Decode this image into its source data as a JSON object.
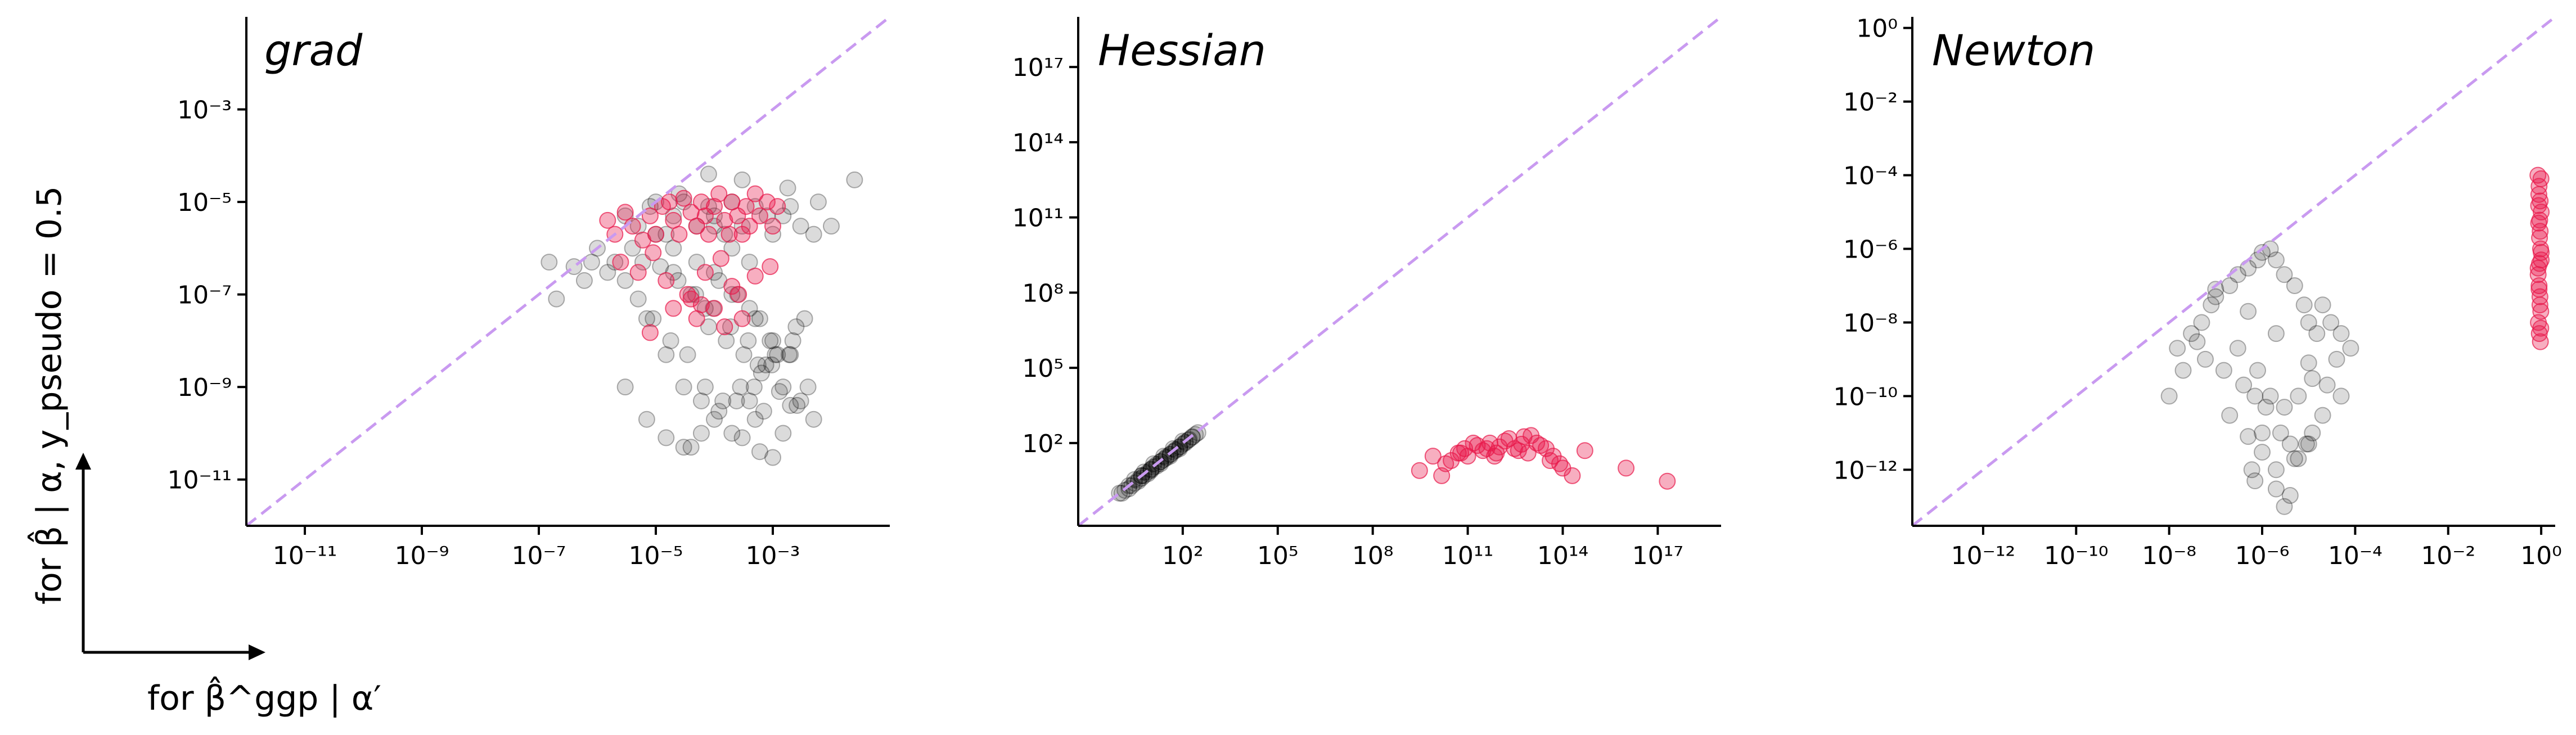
{
  "figure": {
    "ylabel": "for  β̂ | α, y_pseudo = 0.5",
    "xlabel": "for  β̂^ggp | α′"
  },
  "colors": {
    "main_points": "#000000",
    "highlight_points": "#e8184a",
    "diagonal": "#c99af0",
    "axes": "#000000"
  },
  "chart_data": [
    {
      "type": "scatter",
      "title": "grad",
      "xscale": "log",
      "yscale": "log",
      "xlim": [
        1e-12,
        0.1
      ],
      "ylim": [
        1e-12,
        0.1
      ],
      "xticks": [
        {
          "value": 1e-11,
          "label": "10⁻¹¹"
        },
        {
          "value": 1e-09,
          "label": "10⁻⁹"
        },
        {
          "value": 1e-07,
          "label": "10⁻⁷"
        },
        {
          "value": 1e-05,
          "label": "10⁻⁵"
        },
        {
          "value": 0.001,
          "label": "10⁻³"
        }
      ],
      "yticks": [
        {
          "value": 1e-11,
          "label": "10⁻¹¹"
        },
        {
          "value": 1e-09,
          "label": "10⁻⁹"
        },
        {
          "value": 1e-07,
          "label": "10⁻⁷"
        },
        {
          "value": 1e-05,
          "label": "10⁻⁵"
        },
        {
          "value": 0.001,
          "label": "10⁻³"
        }
      ],
      "diagonal": true,
      "series": [
        {
          "color": "#000000",
          "x": [
            3e-06,
            5e-06,
            8e-06,
            1e-05,
            1.5e-05,
            2e-05,
            3e-05,
            5e-05,
            8e-05,
            0.0001,
            0.00015,
            0.0002,
            0.0003,
            0.0005,
            0.0008,
            0.001,
            0.0015,
            0.002,
            0.003,
            0.005,
            4e-06,
            6e-06,
            2e-05,
            4e-05,
            7e-05,
            0.00012,
            0.00025,
            0.0004,
            0.0006,
            0.0009,
            0.0012,
            0.0025,
            0.004,
            7e-06,
            1.5e-05,
            3e-05,
            6e-05,
            0.0001,
            0.0002,
            0.0004,
            0.0007,
            0.0015,
            2e-06,
            3e-06,
            1e-06,
            1.5e-06,
            8e-07,
            6e-07,
            4e-07,
            2e-07,
            1.5e-07,
            2.5e-05,
            0.0003,
            8e-05,
            0.0018,
            0.006,
            0.01,
            0.025,
            5e-06,
            9e-06,
            1.8e-05,
            3.5e-05,
            7e-05,
            0.00014,
            0.00028,
            0.00056,
            0.0011,
            0.0022,
            0.0035,
            1.2e-05,
            2.4e-05,
            4.8e-05,
            9.6e-05,
            0.00019,
            0.00038,
            0.00076,
            0.0015,
            0.003,
            1e-05,
            2e-05,
            5e-05,
            0.0001,
            0.0002,
            0.0005,
            0.001,
            0.002,
            3e-06,
            7e-06,
            1.5e-05,
            3e-05,
            6e-05,
            0.00012,
            0.00024,
            0.00048,
            0.00096,
            0.0019,
            0.0001,
            0.0002,
            0.0004,
            8e-05,
            0.00016,
            0.00032,
            0.00064,
            0.0013,
            0.0026,
            0.005,
            0.0003,
            0.0006,
            0.0005,
            4e-05,
            0.002,
            0.001
          ],
          "y": [
            5e-06,
            3e-06,
            8e-06,
            1e-05,
            2e-06,
            5e-06,
            1e-05,
            3e-06,
            8e-06,
            5e-06,
            2e-06,
            1e-05,
            3e-06,
            8e-06,
            5e-06,
            2e-06,
            5e-06,
            8e-06,
            3e-06,
            2e-06,
            1e-06,
            5e-07,
            3e-07,
            1e-07,
            5e-08,
            2e-07,
            1e-07,
            5e-08,
            3e-08,
            1e-08,
            5e-09,
            2e-08,
            1e-09,
            3e-08,
            5e-09,
            1e-09,
            5e-10,
            2e-10,
            1e-10,
            5e-10,
            3e-10,
            1e-10,
            5e-07,
            2e-07,
            1e-06,
            3e-07,
            5e-07,
            2e-07,
            4e-07,
            8e-08,
            5e-07,
            1.5e-05,
            3e-05,
            4e-05,
            2e-05,
            1e-05,
            3e-06,
            3e-05,
            8e-08,
            3e-08,
            1e-08,
            5e-09,
            1e-09,
            5e-10,
            1e-09,
            3e-09,
            5e-09,
            1e-08,
            3e-08,
            4e-07,
            2e-07,
            1e-07,
            5e-08,
            2e-08,
            1e-08,
            3e-09,
            1e-09,
            5e-10,
            2e-06,
            1e-06,
            5e-07,
            3e-07,
            1e-07,
            3e-08,
            1e-08,
            5e-09,
            1e-09,
            2e-10,
            8e-11,
            5e-11,
            1e-10,
            3e-10,
            5e-10,
            1e-09,
            3e-09,
            5e-09,
            3e-06,
            1e-06,
            5e-07,
            2e-08,
            1e-08,
            5e-09,
            2e-09,
            8e-10,
            4e-10,
            2e-10,
            8e-11,
            4e-11,
            2e-10,
            5e-11,
            4e-10,
            3e-11
          ]
        },
        {
          "color": "#e8184a",
          "x": [
            1.5e-06,
            2e-06,
            3e-06,
            4e-06,
            6e-06,
            8e-06,
            1e-05,
            1.3e-05,
            1.7e-05,
            2e-05,
            2.5e-05,
            3e-05,
            4e-05,
            5e-05,
            6e-05,
            7e-05,
            8e-05,
            0.0001,
            0.00012,
            0.00015,
            0.00018,
            0.0002,
            0.00025,
            0.0003,
            0.00035,
            0.0004,
            0.0005,
            0.0006,
            0.0008,
            0.001,
            0.0012,
            2.5e-06,
            5e-06,
            9e-06,
            1.5e-05,
            3.5e-05,
            7e-05,
            0.00013,
            0.00026,
            0.0005,
            0.0009,
            4e-05,
            0.0001,
            0.0002,
            0.0003,
            6e-05,
            0.00015,
            8e-06,
            2e-05,
            5e-05
          ],
          "y": [
            4e-06,
            2e-06,
            6e-06,
            3e-06,
            1.5e-06,
            5e-06,
            2e-06,
            8e-06,
            1e-05,
            4e-06,
            2e-06,
            1.2e-05,
            6e-06,
            3e-06,
            1e-05,
            5e-06,
            2e-06,
            8e-06,
            1.5e-05,
            4e-06,
            2e-06,
            1e-05,
            5e-06,
            2e-06,
            8e-06,
            3e-06,
            1.5e-05,
            5e-06,
            1e-05,
            3e-06,
            8e-06,
            5e-07,
            3e-07,
            8e-07,
            2e-07,
            1e-07,
            3e-07,
            6e-07,
            1e-07,
            2.5e-07,
            4e-07,
            8e-08,
            5e-08,
            1.5e-07,
            3e-08,
            6e-08,
            2e-08,
            1.5e-08,
            5e-08,
            3e-08
          ]
        }
      ]
    },
    {
      "type": "scatter",
      "title": "Hessian",
      "xscale": "log",
      "yscale": "log",
      "xlim": [
        0.05,
        1e+19
      ],
      "ylim": [
        0.05,
        1e+19
      ],
      "xticks": [
        {
          "value": 100.0,
          "label": "10²"
        },
        {
          "value": 100000.0,
          "label": "10⁵"
        },
        {
          "value": 100000000.0,
          "label": "10⁸"
        },
        {
          "value": 100000000000.0,
          "label": "10¹¹"
        },
        {
          "value": 100000000000000.0,
          "label": "10¹⁴"
        },
        {
          "value": 1e+17,
          "label": "10¹⁷"
        }
      ],
      "yticks": [
        {
          "value": 100.0,
          "label": "10²"
        },
        {
          "value": 100000.0,
          "label": "10⁵"
        },
        {
          "value": 100000000.0,
          "label": "10⁸"
        },
        {
          "value": 100000000000.0,
          "label": "10¹¹"
        },
        {
          "value": 100000000000000.0,
          "label": "10¹⁴"
        },
        {
          "value": 1e+17,
          "label": "10¹⁷"
        }
      ],
      "diagonal": true,
      "series": [
        {
          "color": "#000000",
          "x": [
            1,
            1.5,
            2,
            3,
            4,
            5,
            6,
            8,
            10,
            12,
            15,
            20,
            25,
            30,
            40,
            50,
            60,
            80,
            100,
            120,
            150,
            200,
            250,
            300,
            2,
            4,
            8,
            15,
            30,
            60,
            120,
            5,
            10,
            20,
            40,
            80,
            160,
            1.2,
            2.5,
            5,
            10,
            20,
            40,
            80,
            3,
            6,
            12,
            25,
            50,
            100,
            200
          ],
          "y": [
            1,
            1.3,
            2,
            2.5,
            3.5,
            5,
            5,
            7,
            9,
            11,
            14,
            18,
            22,
            28,
            35,
            45,
            55,
            70,
            90,
            110,
            130,
            170,
            220,
            260,
            1.5,
            3,
            6,
            12,
            25,
            50,
            100,
            5,
            9,
            18,
            35,
            70,
            140,
            1,
            2,
            4,
            8,
            15,
            30,
            60,
            3.5,
            7,
            15,
            30,
            60,
            120,
            180
          ]
        },
        {
          "color": "#e8184a",
          "x": [
            3000000000.0,
            8000000000.0,
            20000000000.0,
            50000000000.0,
            80000000000.0,
            100000000000.0,
            200000000000.0,
            300000000000.0,
            500000000000.0,
            800000000000.0,
            1000000000000.0,
            2000000000000.0,
            3000000000000.0,
            5000000000000.0,
            8000000000000.0,
            10000000000000.0,
            20000000000000.0,
            30000000000000.0,
            50000000000000.0,
            100000000000000.0,
            200000000000000.0,
            500000000000000.0,
            1e+16,
            2e+17,
            15000000000.0,
            30000000000.0,
            60000000000.0,
            150000000000.0,
            400000000000.0,
            700000000000.0,
            1500000000000.0,
            4000000000000.0,
            6000000000000.0,
            15000000000000.0,
            40000000000000.0,
            80000000000000.0
          ],
          "y": [
            8,
            30,
            15,
            40,
            60,
            30,
            80,
            50,
            100,
            40,
            70,
            150,
            60,
            90,
            40,
            200,
            80,
            60,
            30,
            10,
            5,
            50,
            10,
            3,
            5,
            20,
            40,
            100,
            60,
            30,
            120,
            50,
            180,
            100,
            20,
            15
          ]
        }
      ]
    },
    {
      "type": "scatter",
      "title": "Newton",
      "xscale": "log",
      "yscale": "log",
      "xlim": [
        3e-14,
        2
      ],
      "ylim": [
        3e-14,
        2
      ],
      "xticks": [
        {
          "value": 1e-12,
          "label": "10⁻¹²"
        },
        {
          "value": 1e-10,
          "label": "10⁻¹⁰"
        },
        {
          "value": 1e-08,
          "label": "10⁻⁸"
        },
        {
          "value": 1e-06,
          "label": "10⁻⁶"
        },
        {
          "value": 0.0001,
          "label": "10⁻⁴"
        },
        {
          "value": 0.01,
          "label": "10⁻²"
        },
        {
          "value": 1,
          "label": "10⁰"
        }
      ],
      "yticks": [
        {
          "value": 1e-12,
          "label": "10⁻¹²"
        },
        {
          "value": 1e-10,
          "label": "10⁻¹⁰"
        },
        {
          "value": 1e-08,
          "label": "10⁻⁸"
        },
        {
          "value": 1e-06,
          "label": "10⁻⁶"
        },
        {
          "value": 0.0001,
          "label": "10⁻⁴"
        },
        {
          "value": 0.01,
          "label": "10⁻²"
        },
        {
          "value": 1,
          "label": "10⁰"
        }
      ],
      "diagonal": true,
      "series": [
        {
          "color": "#000000",
          "x": [
            3e-08,
            5e-08,
            8e-08,
            1e-07,
            2e-07,
            3e-07,
            5e-07,
            8e-07,
            1e-06,
            1.5e-06,
            2e-06,
            3e-06,
            5e-06,
            8e-06,
            1e-05,
            1.5e-05,
            2e-05,
            3e-05,
            5e-05,
            8e-05,
            4e-08,
            6e-08,
            1.5e-07,
            4e-07,
            7e-07,
            1.2e-06,
            2.5e-06,
            4e-06,
            6e-06,
            9e-06,
            1.2e-05,
            2.5e-05,
            4e-05,
            2e-07,
            5e-07,
            1e-06,
            2e-06,
            5e-06,
            1e-05,
            2e-05,
            3e-07,
            8e-07,
            1.5e-06,
            3e-06,
            6e-06,
            1.2e-05,
            2e-08,
            1e-08,
            1.5e-08,
            1e-07,
            5e-07,
            2e-06,
            1e-05,
            5e-05,
            1e-06,
            3e-06,
            7e-07,
            2e-06,
            4e-06,
            6e-07
          ],
          "y": [
            5e-09,
            1e-08,
            3e-08,
            5e-08,
            1e-07,
            2e-07,
            3e-07,
            5e-07,
            8e-07,
            1e-06,
            5e-07,
            2e-07,
            1e-07,
            3e-08,
            1e-08,
            5e-09,
            3e-08,
            1e-08,
            5e-09,
            2e-09,
            3e-09,
            1e-09,
            5e-10,
            2e-10,
            1e-10,
            5e-11,
            1e-11,
            5e-12,
            2e-12,
            5e-12,
            1e-11,
            2e-10,
            1e-09,
            3e-11,
            8e-12,
            3e-12,
            1e-12,
            2e-12,
            5e-12,
            3e-11,
            2e-09,
            5e-10,
            1e-10,
            5e-11,
            1e-10,
            3e-10,
            5e-10,
            1e-10,
            2e-09,
            8e-08,
            2e-08,
            5e-09,
            8e-10,
            1e-10,
            1e-11,
            1e-13,
            5e-13,
            3e-13,
            2e-13,
            1e-12
          ]
        },
        {
          "color": "#e8184a",
          "x": [
            0.85,
            0.9,
            0.95,
            1,
            0.88,
            0.92,
            0.97,
            1,
            0.86,
            0.9,
            0.94,
            0.98,
            0.87,
            0.91,
            0.96,
            0.99,
            0.89,
            0.93,
            0.95,
            1,
            0.86,
            0.9,
            0.94,
            0.98,
            0.88,
            0.92
          ],
          "y": [
            0.0001,
            5e-05,
            2e-05,
            1e-05,
            5e-06,
            2e-06,
            1e-06,
            5e-07,
            2e-07,
            1e-07,
            5e-08,
            2e-08,
            1e-08,
            5e-09,
            3e-09,
            8e-05,
            3e-05,
            6e-06,
            3e-06,
            8e-07,
            3e-07,
            8e-08,
            3e-08,
            7e-09,
            1.5e-05,
            4e-07
          ]
        }
      ]
    }
  ]
}
